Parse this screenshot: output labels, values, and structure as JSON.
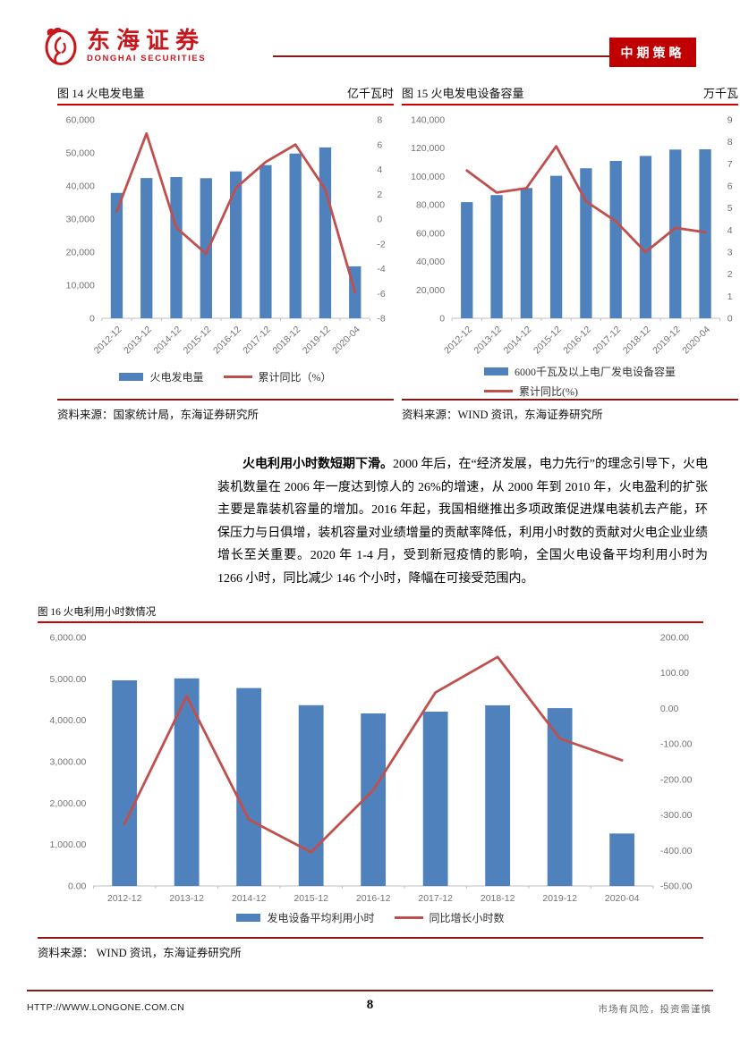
{
  "header": {
    "brand_cn": "东海证券",
    "brand_en": "DONGHAI SECURITIES",
    "badge": "中期策略",
    "brand_color": "#C8161D",
    "badge_bg": "#C00000"
  },
  "paragraph": {
    "lead": "火电利用小时数短期下滑。",
    "body": "2000 年后，在“经济发展，电力先行”的理念引导下，火电装机数量在 2006 年一度达到惊人的 26%的增速，从 2000 年到 2010 年，火电盈利的扩张主要是靠装机容量的增加。2016 年起，我国相继推出多项政策促进煤电装机去产能，环保压力与日俱增，装机容量对业绩增量的贡献率降低，利用小时数的贡献对火电企业业绩增长至关重要。2020 年 1-4 月，受到新冠疫情的影响，全国火电设备平均利用小时为 1266 小时，同比减少 146 个小时，降幅在可接受范围内。"
  },
  "chart_data": [
    {
      "type": "bar",
      "figure_label": "图 14 火电发电量",
      "unit": "亿千瓦时",
      "categories": [
        "2012-12",
        "2013-12",
        "2014-12",
        "2015-12",
        "2016-12",
        "2017-12",
        "2018-12",
        "2019-12",
        "2020-04"
      ],
      "bar_series": {
        "name": "火电发电量",
        "color": "#4F81BD",
        "values": [
          37900,
          42400,
          42700,
          42350,
          44400,
          46300,
          49800,
          51650,
          15700
        ]
      },
      "line_series": {
        "name": "累计同比（%）",
        "color": "#C0504D",
        "values": [
          0.6,
          6.9,
          -0.7,
          -2.8,
          2.5,
          4.6,
          6.0,
          2.4,
          -5.9
        ]
      },
      "left_axis": {
        "min": 0,
        "max": 60000,
        "step": 10000,
        "decimals": 0
      },
      "right_axis": {
        "min": -8,
        "max": 8,
        "step": 2,
        "decimals": 0
      },
      "x_labels_rotated": true,
      "legend_layout": "row",
      "grid": false,
      "source": "资料来源：国家统计局，东海证券研究所"
    },
    {
      "type": "bar",
      "figure_label": "图 15 火电发电设备容量",
      "unit": "万千瓦",
      "categories": [
        "2012-12",
        "2013-12",
        "2014-12",
        "2015-12",
        "2016-12",
        "2017-12",
        "2018-12",
        "2019-12",
        "2020-04"
      ],
      "bar_series": {
        "name": "6000千瓦及以上电厂发电设备容量",
        "color": "#4F81BD",
        "values": [
          81900,
          86900,
          91900,
          100500,
          105800,
          111000,
          114500,
          119000,
          119200
        ]
      },
      "line_series": {
        "name": "累计同比(%)",
        "color": "#C0504D",
        "values": [
          6.7,
          5.7,
          5.9,
          7.8,
          5.3,
          4.4,
          3.0,
          4.1,
          3.9
        ]
      },
      "left_axis": {
        "min": 0,
        "max": 140000,
        "step": 20000,
        "decimals": 0
      },
      "right_axis": {
        "min": 0,
        "max": 9,
        "step": 1,
        "decimals": 0
      },
      "x_labels_rotated": true,
      "legend_layout": "stacked",
      "grid": false,
      "source": "资料来源：WIND 资讯，东海证券研究所"
    },
    {
      "type": "bar",
      "figure_label": "图 16 火电利用小时数情况",
      "unit": "",
      "categories": [
        "2012-12",
        "2013-12",
        "2014-12",
        "2015-12",
        "2016-12",
        "2017-12",
        "2018-12",
        "2019-12",
        "2020-04"
      ],
      "bar_series": {
        "name": "发电设备平均利用小时",
        "color": "#4F81BD",
        "values": [
          4965,
          5012,
          4778,
          4364,
          4165,
          4209,
          4361,
          4293,
          1266
        ]
      },
      "line_series": {
        "name": "同比增长小时数",
        "color": "#C0504D",
        "values": [
          -325,
          35,
          -313,
          -405,
          -230,
          45,
          145,
          -85,
          -146
        ]
      },
      "left_axis": {
        "min": 0,
        "max": 6000,
        "step": 1000,
        "decimals": 2
      },
      "right_axis": {
        "min": -500,
        "max": 200,
        "step": 100,
        "decimals": 2
      },
      "x_labels_rotated": false,
      "legend_layout": "row",
      "grid": false,
      "source": "资料来源： WIND 资讯，东海证券研究所"
    }
  ],
  "footer": {
    "url": "HTTP://WWW.LONGONE.COM.CN",
    "page": "8",
    "disclaimer": "市场有风险，投资需谨慎"
  }
}
